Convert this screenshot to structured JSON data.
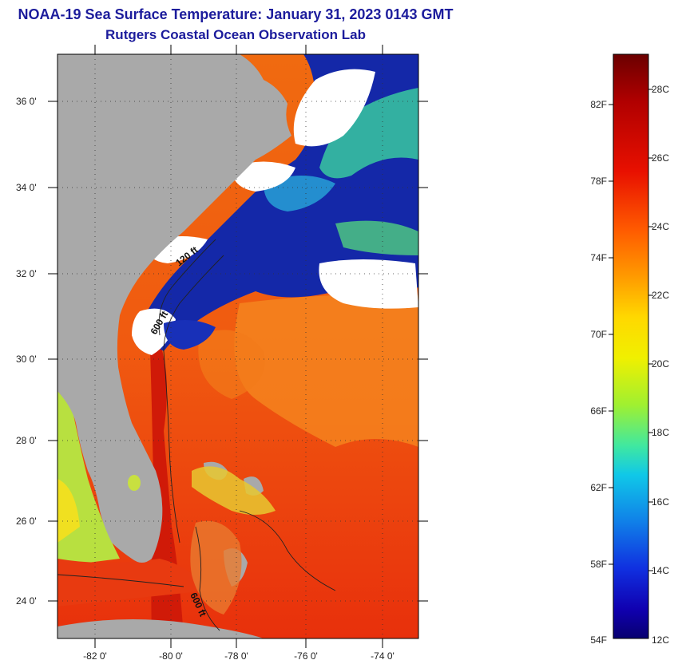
{
  "title": "NOAA-19 Sea Surface Temperature:  January 31, 2023 0143 GMT",
  "subtitle": "Rutgers Coastal Ocean Observation Lab",
  "map": {
    "lat_ticks": [
      "36 0'",
      "34 0'",
      "32 0'",
      "30 0'",
      "28 0'",
      "26 0'",
      "24 0'"
    ],
    "lon_ticks": [
      "-82 0'",
      "-80 0'",
      "-78 0'",
      "-76 0'",
      "-74 0'"
    ],
    "isobath_labels": [
      "120 ft",
      "600 ft",
      "600 ft"
    ],
    "colors": {
      "land": "#a9a9a9",
      "cloud": "#ffffff",
      "warm": "#ee3a10",
      "cold": "#10189c"
    }
  },
  "colorbar": {
    "fahrenheit_labels": [
      "82F",
      "78F",
      "74F",
      "70F",
      "66F",
      "62F",
      "58F",
      "54F"
    ],
    "celsius_labels": [
      "28C",
      "26C",
      "24C",
      "22C",
      "20C",
      "18C",
      "16C",
      "14C",
      "12C"
    ],
    "gradient_colors": [
      "#6b0000",
      "#b00000",
      "#e81000",
      "#ff5a00",
      "#ff9a00",
      "#ffd800",
      "#f0f000",
      "#a0f030",
      "#40e8a0",
      "#10c8e8",
      "#1080e8",
      "#1030e0",
      "#1000b0",
      "#080070"
    ]
  }
}
